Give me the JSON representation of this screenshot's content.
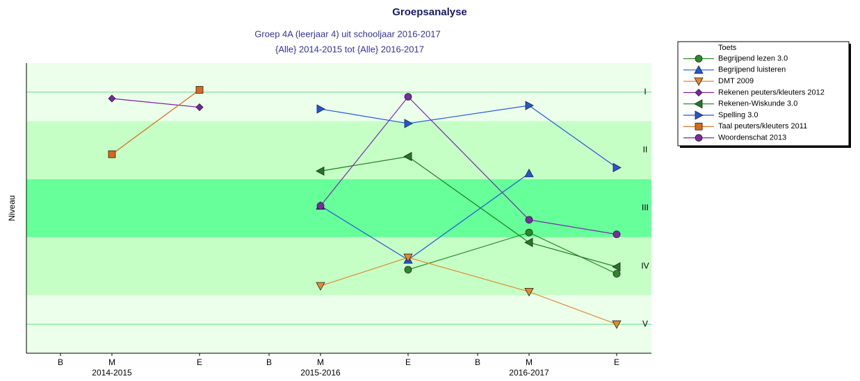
{
  "chart_data": {
    "type": "line",
    "title": "Groepsanalyse",
    "subtitle": [
      "Groep 4A (leerjaar 4) uit schooljaar 2016-2017",
      "{Alle} 2014-2015 tot {Alle} 2016-2017"
    ],
    "y_label": "Niveau",
    "categories": [
      "B",
      "M",
      "E",
      "B",
      "M",
      "E",
      "B",
      "M",
      "E"
    ],
    "year_labels": [
      "2014-2015",
      "2015-2016",
      "2016-2017"
    ],
    "ylim": [
      0.5,
      5.5
    ],
    "y_inverted": true,
    "yticks": [
      {
        "value": 1,
        "label": "I"
      },
      {
        "value": 2,
        "label": "II"
      },
      {
        "value": 3,
        "label": "III"
      },
      {
        "value": 4,
        "label": "IV"
      },
      {
        "value": 5,
        "label": "V"
      }
    ],
    "band_colors": [
      "#ebffeb",
      "#c6ffc6",
      "#66ff99",
      "#c6ffc6",
      "#ebffeb"
    ],
    "legend_title": "Toets",
    "legend": "upper right outside",
    "series": [
      {
        "name": "Begrijpend lezen 3.0",
        "color": "#2a8a2a",
        "marker": "circle",
        "x": [
          5,
          7,
          8
        ],
        "values": [
          4.06,
          3.42,
          4.13
        ]
      },
      {
        "name": "Begrijpend luisteren",
        "color": "#2255dd",
        "marker": "triangle-up",
        "x": [
          4,
          5,
          7
        ],
        "values": [
          2.96,
          3.89,
          2.4
        ]
      },
      {
        "name": "DMT 2009",
        "color": "#e08a30",
        "marker": "triangle-down",
        "x": [
          4,
          5,
          7,
          8
        ],
        "values": [
          4.34,
          3.85,
          4.44,
          5.0
        ]
      },
      {
        "name": "Rekenen peuters/kleuters 2012",
        "color": "#7a22a8",
        "marker": "diamond",
        "x": [
          1,
          2
        ],
        "values": [
          1.11,
          1.26
        ]
      },
      {
        "name": "Rekenen-Wiskunde 3.0",
        "color": "#1f7a1f",
        "marker": "triangle-left",
        "x": [
          4,
          5,
          7,
          8
        ],
        "values": [
          2.36,
          2.11,
          3.59,
          4.01
        ]
      },
      {
        "name": "Spelling 3.0",
        "color": "#2255dd",
        "marker": "triangle-right",
        "x": [
          4,
          5,
          7,
          8
        ],
        "values": [
          1.29,
          1.54,
          1.23,
          2.3
        ]
      },
      {
        "name": "Taal peuters/kleuters 2011",
        "color": "#d8681a",
        "marker": "square",
        "x": [
          1,
          2
        ],
        "values": [
          2.07,
          0.96
        ]
      },
      {
        "name": "Woordenschat 2013",
        "color": "#7a2aa8",
        "marker": "circle",
        "x": [
          4,
          5,
          7,
          8
        ],
        "values": [
          2.96,
          1.08,
          3.2,
          3.45
        ]
      }
    ]
  }
}
